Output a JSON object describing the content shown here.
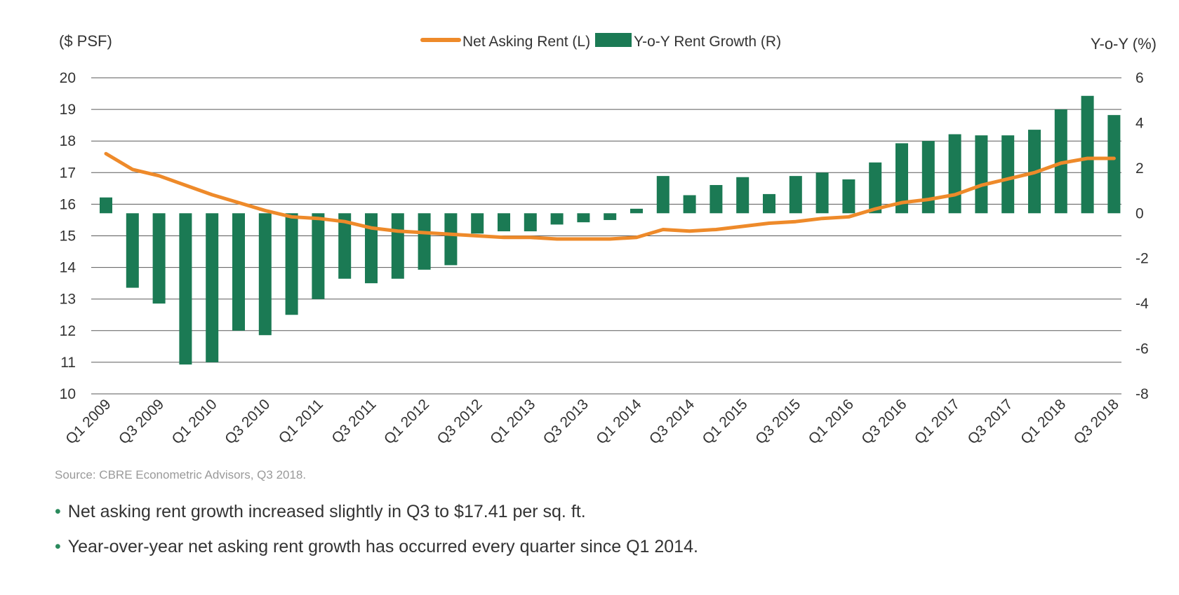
{
  "chart_data": {
    "type": "bar",
    "left_axis_label": "($ PSF)",
    "right_axis_label": "Y-o-Y (%)",
    "ylim_left": [
      10,
      20
    ],
    "yticks_left": [
      "20",
      "19",
      "18",
      "17",
      "16",
      "15",
      "14",
      "13",
      "12",
      "11",
      "10"
    ],
    "ylim_right": [
      -8,
      6
    ],
    "yticks_right": [
      "6",
      "4",
      "2",
      "0",
      "-2",
      "-4",
      "-6",
      "-8"
    ],
    "grid": true,
    "legend_position": "top-center",
    "tick_labels": [
      "Q1 2009",
      "Q3 2009",
      "Q1 2010",
      "Q3 2010",
      "Q1 2011",
      "Q3 2011",
      "Q1 2012",
      "Q3 2012",
      "Q1 2013",
      "Q3 2013",
      "Q1 2014",
      "Q3 2014",
      "Q1 2015",
      "Q3 2015",
      "Q1 2016",
      "Q3 2016",
      "Q1 2017",
      "Q3 2017",
      "Q1 2018",
      "Q3 2018"
    ],
    "categories": [
      "Q1 2009",
      "Q2 2009",
      "Q3 2009",
      "Q4 2009",
      "Q1 2010",
      "Q2 2010",
      "Q3 2010",
      "Q4 2010",
      "Q1 2011",
      "Q2 2011",
      "Q3 2011",
      "Q4 2011",
      "Q1 2012",
      "Q2 2012",
      "Q3 2012",
      "Q4 2012",
      "Q1 2013",
      "Q2 2013",
      "Q3 2013",
      "Q4 2013",
      "Q1 2014",
      "Q2 2014",
      "Q3 2014",
      "Q4 2014",
      "Q1 2015",
      "Q2 2015",
      "Q3 2015",
      "Q4 2015",
      "Q1 2016",
      "Q2 2016",
      "Q3 2016",
      "Q4 2016",
      "Q1 2017",
      "Q2 2017",
      "Q3 2017",
      "Q4 2017",
      "Q1 2018",
      "Q2 2018",
      "Q3 2018"
    ],
    "series": [
      {
        "name": "Net Asking Rent (L)",
        "kind": "line",
        "axis": "left",
        "color": "#ee8a2a",
        "values": [
          17.6,
          17.1,
          16.9,
          16.6,
          16.3,
          16.05,
          15.8,
          15.6,
          15.55,
          15.45,
          15.25,
          15.15,
          15.1,
          15.05,
          15.0,
          14.95,
          14.95,
          14.9,
          14.9,
          14.9,
          14.95,
          15.2,
          15.15,
          15.2,
          15.3,
          15.4,
          15.45,
          15.55,
          15.6,
          15.85,
          16.05,
          16.15,
          16.3,
          16.6,
          16.8,
          17.0,
          17.3,
          17.45,
          17.45
        ]
      },
      {
        "name": "Y-o-Y Rent Growth (R)",
        "kind": "bar",
        "axis": "right",
        "color": "#1b7a54",
        "values": [
          0.7,
          -3.3,
          -4.0,
          -6.7,
          -6.6,
          -5.2,
          -5.4,
          -4.5,
          -3.8,
          -2.9,
          -3.1,
          -2.9,
          -2.5,
          -2.3,
          -0.9,
          -0.8,
          -0.8,
          -0.5,
          -0.4,
          -0.3,
          0.2,
          1.65,
          0.8,
          1.25,
          1.6,
          0.85,
          1.65,
          1.8,
          1.5,
          2.25,
          3.1,
          3.2,
          3.5,
          3.45,
          3.45,
          3.7,
          4.6,
          5.2,
          4.35
        ]
      }
    ]
  },
  "footer": {
    "source": "Source: CBRE Econometric Advisors, Q3 2018.",
    "bullets": [
      "Net asking rent growth increased slightly in Q3 to $17.41 per sq. ft.",
      "Year-over-year net asking rent growth has occurred every quarter since Q1 2014."
    ],
    "bullet_symbol": "•"
  }
}
